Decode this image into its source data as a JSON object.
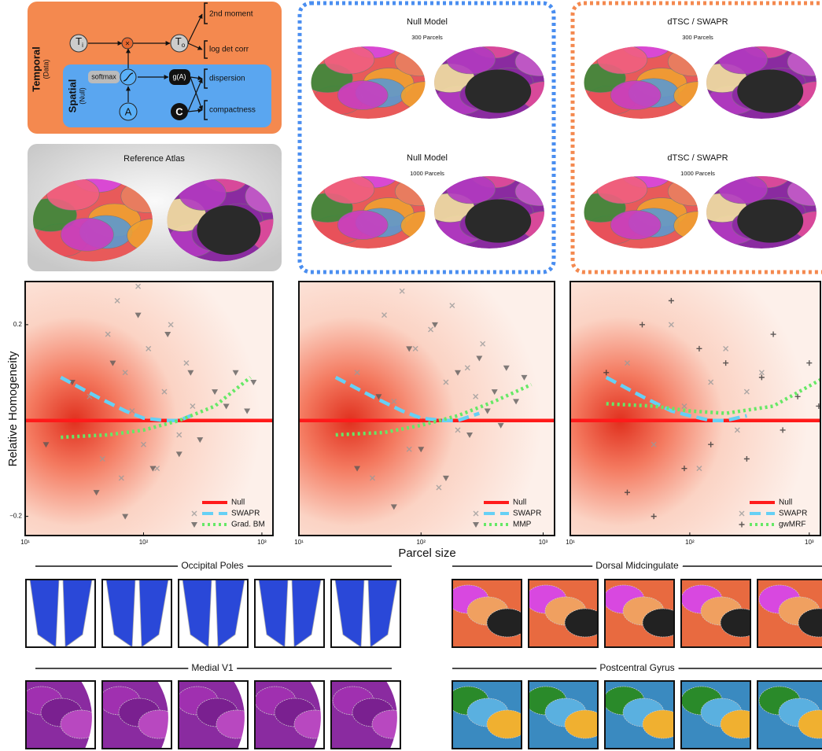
{
  "diagram": {
    "temporal": {
      "label": "Temporal",
      "sub": "(Data)"
    },
    "spatial": {
      "label": "Spatial",
      "sub": "(Null)"
    },
    "input_node": {
      "main": "T",
      "sub": "i"
    },
    "output_node": {
      "main": "T",
      "sub": "o"
    },
    "softmax": "softmax",
    "g": "g(A)",
    "a": "A",
    "c": "C",
    "outputs": [
      "2nd moment",
      "log det corr",
      "dispersion",
      "compactness"
    ]
  },
  "atlas_panels": [
    {
      "title": "Reference Atlas"
    },
    {
      "title": "Null Model",
      "subtitle": "300 Parcels"
    },
    {
      "title": "Null Model",
      "subtitle": "1000 Parcels"
    },
    {
      "title": "dTSC / SWAPR",
      "subtitle": "300 Parcels"
    },
    {
      "title": "dTSC / SWAPR",
      "subtitle": "1000 Parcels"
    }
  ],
  "axis_labels": {
    "y": "Relative Homogeneity",
    "x": "Parcel size"
  },
  "chart_data": [
    {
      "type": "scatter",
      "xscale": "log",
      "xlim": [
        10,
        1240
      ],
      "ylim": [
        -0.24,
        0.29
      ],
      "xticks": [
        {
          "value": 10,
          "label": "10¹"
        },
        {
          "value": 100,
          "label": "10²"
        },
        {
          "value": 1000,
          "label": "10³"
        }
      ],
      "yticks": [
        0.2,
        {
          "value": -0.2,
          "label": "−0.2"
        }
      ],
      "legend": "lower right",
      "series": [
        {
          "name": "Null",
          "color": "#ff1a1a",
          "line": "solid",
          "x": [
            10,
            1240
          ],
          "values": [
            0,
            0
          ]
        },
        {
          "name": "SWAPR",
          "color": "#66d0f5",
          "line": "dashed",
          "marker": "x",
          "marker_color": "#9a9a9a",
          "x": [
            20,
            40,
            70,
            100,
            150,
            200,
            250
          ],
          "values": [
            0.09,
            0.05,
            0.02,
            0.005,
            0,
            0,
            0.01
          ],
          "points": {
            "x": [
              35,
              45,
              50,
              60,
              65,
              70,
              80,
              90,
              100,
              110,
              130,
              150,
              170,
              200,
              230,
              260
            ],
            "y": [
              0.05,
              -0.08,
              0.18,
              0.25,
              -0.12,
              0.1,
              0.02,
              0.28,
              -0.05,
              0.15,
              -0.1,
              0.06,
              0.2,
              -0.03,
              0.12,
              0.03
            ]
          }
        },
        {
          "name": "Grad. BM",
          "color": "#66e866",
          "line": "dotted",
          "marker": "triangle",
          "marker_color": "#555555",
          "x": [
            20,
            50,
            100,
            200,
            400,
            800
          ],
          "values": [
            -0.035,
            -0.03,
            -0.02,
            0,
            0.03,
            0.09
          ],
          "points": {
            "x": [
              15,
              25,
              40,
              55,
              70,
              90,
              120,
              160,
              200,
              250,
              300,
              400,
              500,
              600,
              750,
              850
            ],
            "y": [
              -0.05,
              0.08,
              -0.15,
              0.12,
              -0.2,
              0.22,
              -0.1,
              0.18,
              -0.07,
              0.1,
              -0.04,
              0.06,
              0.03,
              0.1,
              0.02,
              0.08
            ]
          }
        }
      ]
    },
    {
      "type": "scatter",
      "xscale": "log",
      "xlim": [
        10,
        1240
      ],
      "ylim": [
        -0.24,
        0.29
      ],
      "xticks": [
        {
          "value": 10,
          "label": "10¹"
        },
        {
          "value": 100,
          "label": "10²"
        },
        {
          "value": 1000,
          "label": "10³"
        }
      ],
      "legend": "lower right",
      "series": [
        {
          "name": "Null",
          "color": "#ff1a1a",
          "line": "solid",
          "x": [
            10,
            1240
          ],
          "values": [
            0,
            0
          ]
        },
        {
          "name": "SWAPR",
          "color": "#66d0f5",
          "line": "dashed",
          "marker": "x",
          "marker_color": "#9a9a9a",
          "x": [
            20,
            40,
            70,
            100,
            150,
            200,
            300
          ],
          "values": [
            0.09,
            0.05,
            0.02,
            0.005,
            0,
            0,
            0.015
          ],
          "points": {
            "x": [
              30,
              40,
              50,
              60,
              70,
              80,
              90,
              100,
              120,
              140,
              160,
              180,
              200,
              240,
              280,
              320
            ],
            "y": [
              0.1,
              -0.12,
              0.22,
              0.04,
              0.27,
              -0.06,
              0.15,
              0.0,
              0.19,
              -0.14,
              0.08,
              0.24,
              -0.02,
              0.11,
              0.05,
              0.16
            ]
          }
        },
        {
          "name": "MMP",
          "color": "#66e866",
          "line": "dotted",
          "marker": "triangle",
          "marker_color": "#555555",
          "x": [
            20,
            50,
            100,
            200,
            400,
            800
          ],
          "values": [
            -0.03,
            -0.025,
            -0.01,
            0.01,
            0.04,
            0.075
          ],
          "points": {
            "x": [
              30,
              45,
              60,
              80,
              100,
              130,
              160,
              200,
              250,
              300,
              350,
              400,
              450,
              500,
              600,
              700
            ],
            "y": [
              -0.1,
              0.05,
              -0.18,
              0.15,
              -0.06,
              0.2,
              -0.12,
              0.1,
              -0.03,
              0.13,
              0.02,
              0.06,
              -0.01,
              0.11,
              0.04,
              0.09
            ]
          }
        }
      ]
    },
    {
      "type": "scatter",
      "xscale": "log",
      "xlim": [
        10,
        1240
      ],
      "ylim": [
        -0.24,
        0.29
      ],
      "xticks": [
        {
          "value": 10,
          "label": "10¹"
        },
        {
          "value": 100,
          "label": "10²"
        },
        {
          "value": 1000,
          "label": "10³"
        }
      ],
      "legend": "lower right",
      "series": [
        {
          "name": "Null",
          "color": "#ff1a1a",
          "line": "solid",
          "x": [
            10,
            1240
          ],
          "values": [
            0,
            0
          ]
        },
        {
          "name": "SWAPR",
          "color": "#66d0f5",
          "line": "dashed",
          "marker": "x",
          "marker_color": "#9a9a9a",
          "x": [
            20,
            40,
            70,
            100,
            150,
            200,
            300
          ],
          "values": [
            0.09,
            0.05,
            0.02,
            0.01,
            0,
            0,
            0.01
          ],
          "points": {
            "x": [
              30,
              50,
              70,
              90,
              120,
              150,
              200,
              250,
              300,
              400
            ],
            "y": [
              0.12,
              -0.05,
              0.2,
              0.03,
              -0.1,
              0.08,
              0.15,
              -0.02,
              0.06,
              0.1
            ]
          }
        },
        {
          "name": "gwMRF",
          "color": "#66e866",
          "line": "dotted",
          "marker": "plus",
          "marker_color": "#333333",
          "x": [
            20,
            50,
            100,
            200,
            500,
            1240
          ],
          "values": [
            0.035,
            0.03,
            0.02,
            0.015,
            0.03,
            0.085
          ],
          "points": {
            "x": [
              20,
              30,
              40,
              50,
              70,
              90,
              120,
              150,
              200,
              300,
              400,
              500,
              600,
              800,
              1000,
              1200
            ],
            "y": [
              0.1,
              -0.15,
              0.2,
              -0.2,
              0.25,
              -0.1,
              0.15,
              -0.05,
              0.12,
              -0.08,
              0.09,
              0.18,
              -0.02,
              0.05,
              0.12,
              0.03
            ]
          }
        }
      ]
    }
  ],
  "zoom_sections": [
    "Occipital Poles",
    "Dorsal Midcingulate",
    "Medial V1",
    "Postcentral Gyrus"
  ]
}
